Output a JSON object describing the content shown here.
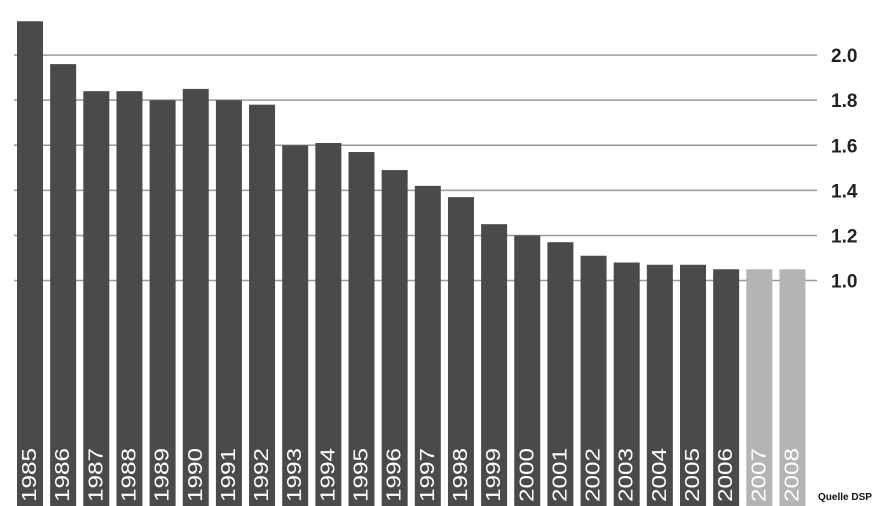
{
  "chart_data": {
    "type": "bar",
    "categories": [
      "1985",
      "1986",
      "1987",
      "1988",
      "1989",
      "1990",
      "1991",
      "1992",
      "1993",
      "1994",
      "1995",
      "1996",
      "1997",
      "1998",
      "1999",
      "2000",
      "2001",
      "2002",
      "2003",
      "2004",
      "2005",
      "2006",
      "2007",
      "2008"
    ],
    "values": [
      2.15,
      1.96,
      1.84,
      1.84,
      1.8,
      1.85,
      1.8,
      1.78,
      1.6,
      1.61,
      1.57,
      1.49,
      1.42,
      1.37,
      1.25,
      1.2,
      1.17,
      1.11,
      1.08,
      1.07,
      1.07,
      1.05,
      1.05,
      1.05
    ],
    "projected": [
      false,
      false,
      false,
      false,
      false,
      false,
      false,
      false,
      false,
      false,
      false,
      false,
      false,
      false,
      false,
      false,
      false,
      false,
      false,
      false,
      false,
      false,
      true,
      true
    ],
    "y_ticks": [
      "1.0",
      "1.2",
      "1.4",
      "1.6",
      "1.8",
      "2.0"
    ],
    "ylim": [
      0,
      2.2
    ],
    "title": "",
    "xlabel": "",
    "ylabel": "",
    "grid": true,
    "source": "Quelle DSP",
    "colors": {
      "actual": "#4a4a4a",
      "projected": "#b4b4b4",
      "grid": "#999999"
    }
  }
}
